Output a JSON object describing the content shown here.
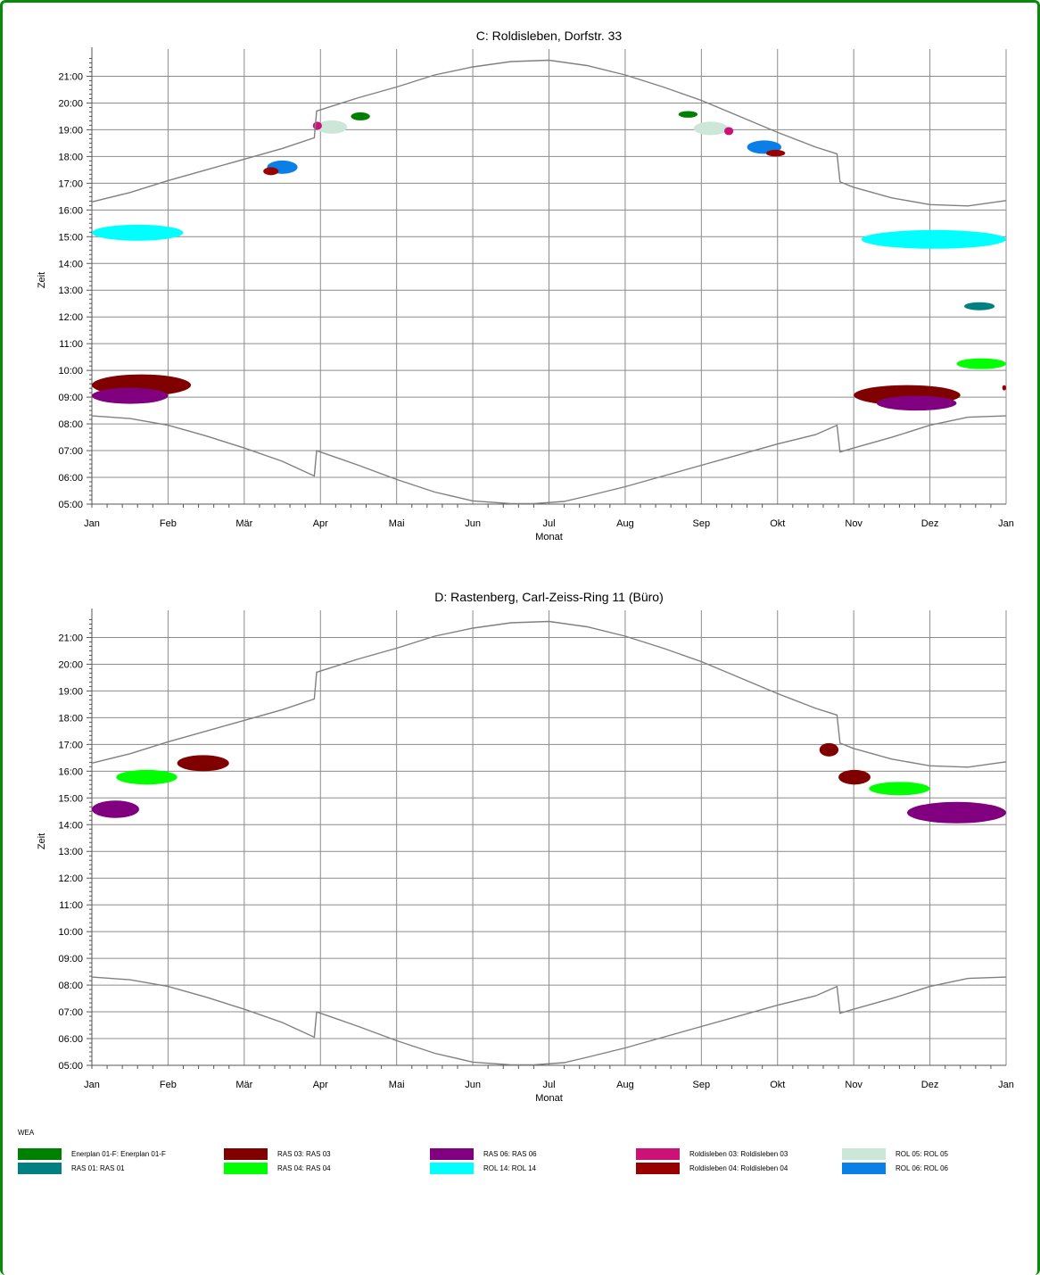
{
  "chart_data": [
    {
      "type": "shadow-calendar",
      "title": "C: Roldisleben, Dorfstr. 33",
      "xlabel": "Monat",
      "ylabel": "Zeit",
      "x_ticks": [
        "Jan",
        "Feb",
        "Mär",
        "Apr",
        "Mai",
        "Jun",
        "Jul",
        "Aug",
        "Sep",
        "Okt",
        "Nov",
        "Dez",
        "Jan"
      ],
      "y_ticks": [
        "05:00",
        "06:00",
        "07:00",
        "08:00",
        "09:00",
        "10:00",
        "11:00",
        "12:00",
        "13:00",
        "14:00",
        "15:00",
        "16:00",
        "17:00",
        "18:00",
        "19:00",
        "20:00",
        "21:00"
      ],
      "xlim": [
        0,
        12
      ],
      "ylim": [
        5,
        21.75
      ],
      "grid": true,
      "sunrise": [
        [
          0,
          8.3
        ],
        [
          0.5,
          8.2
        ],
        [
          1,
          7.95
        ],
        [
          1.5,
          7.55
        ],
        [
          2,
          7.1
        ],
        [
          2.5,
          6.6
        ],
        [
          2.92,
          6.05
        ],
        [
          2.95,
          7.0
        ],
        [
          3.5,
          6.45
        ],
        [
          4,
          5.92
        ],
        [
          4.5,
          5.45
        ],
        [
          5,
          5.12
        ],
        [
          5.5,
          5.02
        ],
        [
          5.8,
          5.02
        ],
        [
          6.2,
          5.1
        ],
        [
          6.5,
          5.3
        ],
        [
          7,
          5.65
        ],
        [
          7.5,
          6.05
        ],
        [
          8,
          6.45
        ],
        [
          8.5,
          6.85
        ],
        [
          9,
          7.25
        ],
        [
          9.5,
          7.6
        ],
        [
          9.78,
          7.95
        ],
        [
          9.82,
          6.95
        ],
        [
          10,
          7.1
        ],
        [
          10.5,
          7.5
        ],
        [
          11,
          7.95
        ],
        [
          11.5,
          8.25
        ],
        [
          12,
          8.3
        ]
      ],
      "sunset": [
        [
          0,
          16.3
        ],
        [
          0.5,
          16.65
        ],
        [
          1,
          17.1
        ],
        [
          1.5,
          17.5
        ],
        [
          2,
          17.9
        ],
        [
          2.5,
          18.3
        ],
        [
          2.92,
          18.7
        ],
        [
          2.95,
          19.7
        ],
        [
          3.5,
          20.2
        ],
        [
          4,
          20.6
        ],
        [
          4.5,
          21.05
        ],
        [
          5,
          21.35
        ],
        [
          5.5,
          21.55
        ],
        [
          6,
          21.6
        ],
        [
          6.5,
          21.4
        ],
        [
          7,
          21.05
        ],
        [
          7.5,
          20.6
        ],
        [
          8,
          20.1
        ],
        [
          8.5,
          19.5
        ],
        [
          9,
          18.9
        ],
        [
          9.5,
          18.35
        ],
        [
          9.78,
          18.1
        ],
        [
          9.82,
          17.05
        ],
        [
          10,
          16.85
        ],
        [
          10.5,
          16.45
        ],
        [
          11,
          16.2
        ],
        [
          11.5,
          16.15
        ],
        [
          12,
          16.35
        ]
      ],
      "shadows": [
        {
          "turbine": "ROL 14",
          "color": "#00ffff",
          "x": [
            0.0,
            1.2
          ],
          "y": [
            14.85,
            15.45
          ]
        },
        {
          "turbine": "ROL 14",
          "color": "#00ffff",
          "x": [
            10.1,
            12.0
          ],
          "y": [
            14.55,
            15.25
          ]
        },
        {
          "turbine": "RAS 03",
          "color": "#800000",
          "x": [
            0.0,
            1.3
          ],
          "y": [
            9.05,
            9.85
          ]
        },
        {
          "turbine": "RAS 06",
          "color": "#800080",
          "x": [
            0.0,
            1.0
          ],
          "y": [
            8.75,
            9.35
          ]
        },
        {
          "turbine": "RAS 03",
          "color": "#800000",
          "x": [
            10.0,
            11.4
          ],
          "y": [
            8.7,
            9.45
          ]
        },
        {
          "turbine": "RAS 06",
          "color": "#800080",
          "x": [
            10.3,
            11.35
          ],
          "y": [
            8.5,
            9.05
          ]
        },
        {
          "turbine": "RAS 04",
          "color": "#00ff00",
          "x": [
            11.35,
            12.0
          ],
          "y": [
            10.05,
            10.45
          ]
        },
        {
          "turbine": "RAS 01",
          "color": "#008080",
          "x": [
            11.45,
            11.85
          ],
          "y": [
            12.25,
            12.55
          ]
        },
        {
          "turbine": "Roldisleben 04",
          "color": "#990000",
          "x": [
            11.95,
            12.0
          ],
          "y": [
            9.25,
            9.45
          ]
        },
        {
          "turbine": "ROL 06",
          "color": "#0a7fe6",
          "x": [
            2.3,
            2.7
          ],
          "y": [
            17.35,
            17.85
          ]
        },
        {
          "turbine": "Roldisleben 04",
          "color": "#990000",
          "x": [
            2.25,
            2.45
          ],
          "y": [
            17.3,
            17.6
          ]
        },
        {
          "turbine": "ROL 05",
          "color": "#cce6d8",
          "x": [
            2.95,
            3.35
          ],
          "y": [
            18.85,
            19.35
          ]
        },
        {
          "turbine": "Roldisleben 03",
          "color": "#cc1177",
          "x": [
            2.9,
            3.02
          ],
          "y": [
            19.0,
            19.3
          ]
        },
        {
          "turbine": "Enerplan 01-F",
          "color": "#008000",
          "x": [
            3.4,
            3.65
          ],
          "y": [
            19.35,
            19.65
          ]
        },
        {
          "turbine": "Enerplan 01-F",
          "color": "#008000",
          "x": [
            7.7,
            7.95
          ],
          "y": [
            19.45,
            19.7
          ]
        },
        {
          "turbine": "ROL 05",
          "color": "#cce6d8",
          "x": [
            7.9,
            8.35
          ],
          "y": [
            18.8,
            19.3
          ]
        },
        {
          "turbine": "Roldisleben 03",
          "color": "#cc1177",
          "x": [
            8.3,
            8.42
          ],
          "y": [
            18.8,
            19.1
          ]
        },
        {
          "turbine": "ROL 06",
          "color": "#0a7fe6",
          "x": [
            8.6,
            9.05
          ],
          "y": [
            18.1,
            18.6
          ]
        },
        {
          "turbine": "Roldisleben 04",
          "color": "#990000",
          "x": [
            8.85,
            9.1
          ],
          "y": [
            18.0,
            18.25
          ]
        }
      ]
    },
    {
      "type": "shadow-calendar",
      "title": "D: Rastenberg, Carl-Zeiss-Ring 11 (Büro)",
      "xlabel": "Monat",
      "ylabel": "Zeit",
      "x_ticks": [
        "Jan",
        "Feb",
        "Mär",
        "Apr",
        "Mai",
        "Jun",
        "Jul",
        "Aug",
        "Sep",
        "Okt",
        "Nov",
        "Dez",
        "Jan"
      ],
      "y_ticks": [
        "05:00",
        "06:00",
        "07:00",
        "08:00",
        "09:00",
        "10:00",
        "11:00",
        "12:00",
        "13:00",
        "14:00",
        "15:00",
        "16:00",
        "17:00",
        "18:00",
        "19:00",
        "20:00",
        "21:00"
      ],
      "xlim": [
        0,
        12
      ],
      "ylim": [
        5,
        21.75
      ],
      "grid": true,
      "sunrise": [
        [
          0,
          8.3
        ],
        [
          0.5,
          8.2
        ],
        [
          1,
          7.95
        ],
        [
          1.5,
          7.55
        ],
        [
          2,
          7.1
        ],
        [
          2.5,
          6.6
        ],
        [
          2.92,
          6.05
        ],
        [
          2.95,
          7.0
        ],
        [
          3.5,
          6.45
        ],
        [
          4,
          5.92
        ],
        [
          4.5,
          5.45
        ],
        [
          5,
          5.12
        ],
        [
          5.5,
          5.02
        ],
        [
          5.8,
          5.02
        ],
        [
          6.2,
          5.1
        ],
        [
          6.5,
          5.3
        ],
        [
          7,
          5.65
        ],
        [
          7.5,
          6.05
        ],
        [
          8,
          6.45
        ],
        [
          8.5,
          6.85
        ],
        [
          9,
          7.25
        ],
        [
          9.5,
          7.6
        ],
        [
          9.78,
          7.95
        ],
        [
          9.82,
          6.95
        ],
        [
          10,
          7.1
        ],
        [
          10.5,
          7.5
        ],
        [
          11,
          7.95
        ],
        [
          11.5,
          8.25
        ],
        [
          12,
          8.3
        ]
      ],
      "sunset": [
        [
          0,
          16.3
        ],
        [
          0.5,
          16.65
        ],
        [
          1,
          17.1
        ],
        [
          1.5,
          17.5
        ],
        [
          2,
          17.9
        ],
        [
          2.5,
          18.3
        ],
        [
          2.92,
          18.7
        ],
        [
          2.95,
          19.7
        ],
        [
          3.5,
          20.2
        ],
        [
          4,
          20.6
        ],
        [
          4.5,
          21.05
        ],
        [
          5,
          21.35
        ],
        [
          5.5,
          21.55
        ],
        [
          6,
          21.6
        ],
        [
          6.5,
          21.4
        ],
        [
          7,
          21.05
        ],
        [
          7.5,
          20.6
        ],
        [
          8,
          20.1
        ],
        [
          8.5,
          19.5
        ],
        [
          9,
          18.9
        ],
        [
          9.5,
          18.35
        ],
        [
          9.78,
          18.1
        ],
        [
          9.82,
          17.05
        ],
        [
          10,
          16.85
        ],
        [
          10.5,
          16.45
        ],
        [
          11,
          16.2
        ],
        [
          11.5,
          16.15
        ],
        [
          12,
          16.35
        ]
      ],
      "shadows": [
        {
          "turbine": "RAS 06",
          "color": "#800080",
          "x": [
            0.0,
            0.62
          ],
          "y": [
            14.25,
            14.9
          ]
        },
        {
          "turbine": "RAS 04",
          "color": "#00ff00",
          "x": [
            0.32,
            1.12
          ],
          "y": [
            15.5,
            16.05
          ]
        },
        {
          "turbine": "RAS 03",
          "color": "#800000",
          "x": [
            1.12,
            1.8
          ],
          "y": [
            16.0,
            16.6
          ]
        },
        {
          "turbine": "RAS 03",
          "color": "#800000",
          "x": [
            9.55,
            9.8
          ],
          "y": [
            16.55,
            17.05
          ]
        },
        {
          "turbine": "RAS 03",
          "color": "#800000",
          "x": [
            9.8,
            10.22
          ],
          "y": [
            15.5,
            16.05
          ]
        },
        {
          "turbine": "RAS 04",
          "color": "#00ff00",
          "x": [
            10.2,
            11.0
          ],
          "y": [
            15.1,
            15.6
          ]
        },
        {
          "turbine": "RAS 06",
          "color": "#800080",
          "x": [
            10.7,
            12.0
          ],
          "y": [
            14.05,
            14.85
          ]
        }
      ]
    }
  ],
  "legend": {
    "title": "WEA",
    "items": [
      {
        "label": "Enerplan 01-F: Enerplan 01-F",
        "color": "#008000"
      },
      {
        "label": "RAS 01: RAS 01",
        "color": "#008080"
      },
      {
        "label": "RAS 03: RAS 03",
        "color": "#800000"
      },
      {
        "label": "RAS 04: RAS 04",
        "color": "#00ff00"
      },
      {
        "label": "RAS 06: RAS 06",
        "color": "#800080"
      },
      {
        "label": "ROL 14: ROL 14",
        "color": "#00ffff"
      },
      {
        "label": "Roldisleben 03: Roldisleben 03",
        "color": "#cc1177"
      },
      {
        "label": "Roldisleben 04: Roldisleben 04",
        "color": "#990000"
      },
      {
        "label": "ROL 05: ROL 05",
        "color": "#cce6d8"
      },
      {
        "label": "ROL 06: ROL 06",
        "color": "#0a7fe6"
      }
    ]
  },
  "colors": {
    "frame": "#0a8a0a",
    "grid": "#8c8c8c",
    "sun_curve": "#808080"
  }
}
